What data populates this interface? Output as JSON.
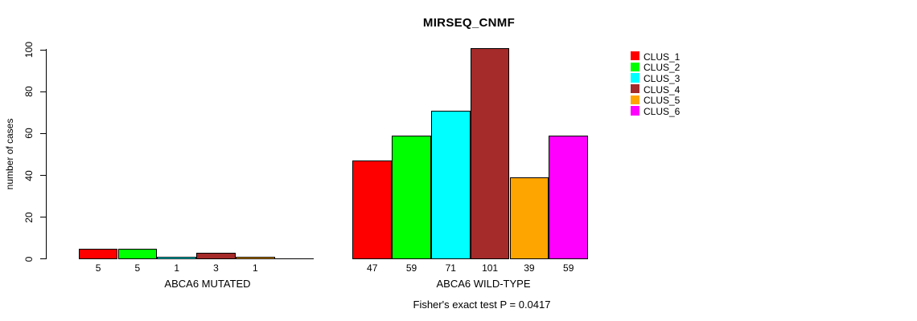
{
  "chart_data": {
    "type": "bar",
    "title": "MIRSEQ_CNMF",
    "ylabel": "number of cases",
    "ylim": [
      0,
      101
    ],
    "yticks": [
      0,
      20,
      40,
      60,
      80,
      100
    ],
    "grid": false,
    "legend_position": "right",
    "clusters": [
      "CLUS_1",
      "CLUS_2",
      "CLUS_3",
      "CLUS_4",
      "CLUS_5",
      "CLUS_6"
    ],
    "cluster_colors": [
      "#ff0000",
      "#00ff00",
      "#00ffff",
      "#a52a2a",
      "#ffa500",
      "#ff00ff"
    ],
    "groups": [
      {
        "label": "ABCA6 MUTATED",
        "values": [
          5,
          5,
          1,
          3,
          1,
          0
        ],
        "value_labels": [
          "5",
          "5",
          "1",
          "3",
          "1",
          ""
        ]
      },
      {
        "label": "ABCA6 WILD-TYPE",
        "values": [
          47,
          59,
          71,
          101,
          39,
          59
        ],
        "value_labels": [
          "47",
          "59",
          "71",
          "101",
          "39",
          "59"
        ]
      }
    ],
    "annotation": "Fisher's exact test P = 0.0417"
  }
}
